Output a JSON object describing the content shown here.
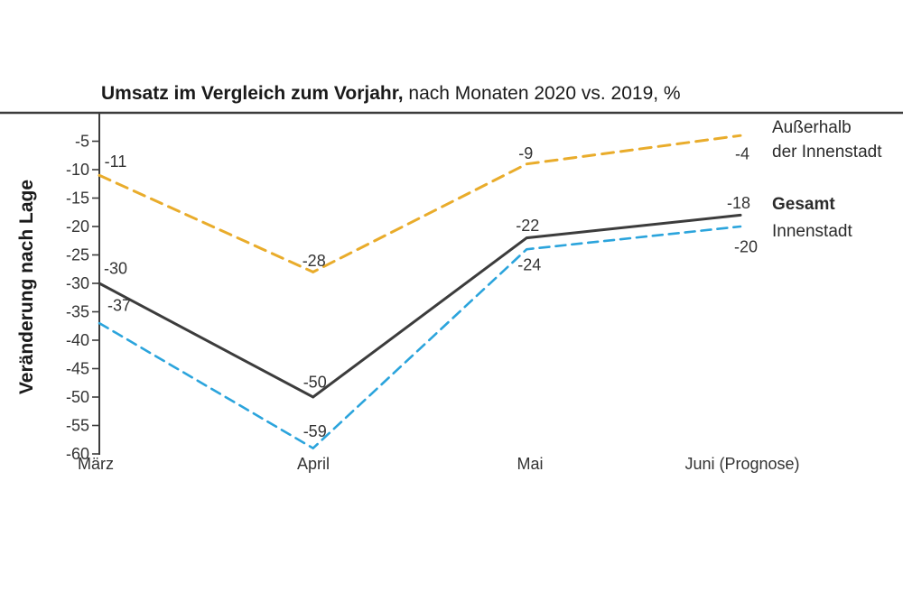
{
  "title": {
    "bold": "Umsatz im Vergleich zum Vorjahr,",
    "regular": " nach Monaten 2020 vs. 2019, %"
  },
  "legend": {
    "ausserhalb": "Außerhalb\nder Innenstadt",
    "gesamt": "Gesamt",
    "innenstadt": "Innenstadt"
  },
  "colors": {
    "ausserhalb_line": "#E9AC2B",
    "gesamt_line": "#3C3C3C",
    "innenstadt_line": "#2BA4DC",
    "axis": "#3C3C3C",
    "text": "#333333"
  },
  "chart_data": {
    "type": "line",
    "title": "Umsatz im Vergleich zum Vorjahr, nach Monaten 2020 vs. 2019, %",
    "ylabel": "Veränderung nach Lage",
    "xlabel": "",
    "categories": [
      "März",
      "April",
      "Mai",
      "Juni (Prognose)"
    ],
    "yticks": [
      -5,
      -10,
      -15,
      -20,
      -25,
      -30,
      -35,
      -40,
      -45,
      -50,
      -55,
      -60
    ],
    "ylim": [
      0,
      -60
    ],
    "grid": false,
    "legend_position": "right",
    "series": [
      {
        "name": "Außerhalb der Innenstadt",
        "style": "dashed",
        "color": "#E9AC2B",
        "values": [
          -11,
          -28,
          -9,
          -4
        ]
      },
      {
        "name": "Gesamt",
        "style": "solid",
        "color": "#3C3C3C",
        "values": [
          -30,
          -50,
          -22,
          -18
        ]
      },
      {
        "name": "Innenstadt",
        "style": "dashed",
        "color": "#2BA4DC",
        "values": [
          -37,
          -59,
          -24,
          -20
        ]
      }
    ]
  }
}
